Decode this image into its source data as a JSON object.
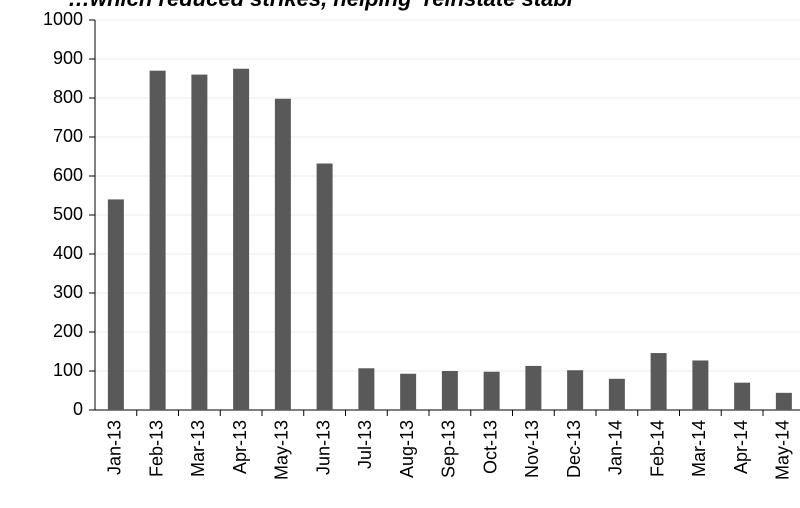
{
  "chart_data": {
    "type": "bar",
    "title": "…which reduced strikes, helping ‘reinstate stabi",
    "categories": [
      "Jan-13",
      "Feb-13",
      "Mar-13",
      "Apr-13",
      "May-13",
      "Jun-13",
      "Jul-13",
      "Aug-13",
      "Sep-13",
      "Oct-13",
      "Nov-13",
      "Dec-13",
      "Jan-14",
      "Feb-14",
      "Mar-14",
      "Apr-14",
      "May-14"
    ],
    "values": [
      540,
      870,
      860,
      875,
      798,
      632,
      107,
      93,
      100,
      98,
      113,
      102,
      80,
      146,
      127,
      70,
      44
    ],
    "color": "#595959",
    "ylim": [
      0,
      1000
    ],
    "yticks": [
      0,
      100,
      200,
      300,
      400,
      500,
      600,
      700,
      800,
      900,
      1000
    ],
    "grid": true
  }
}
